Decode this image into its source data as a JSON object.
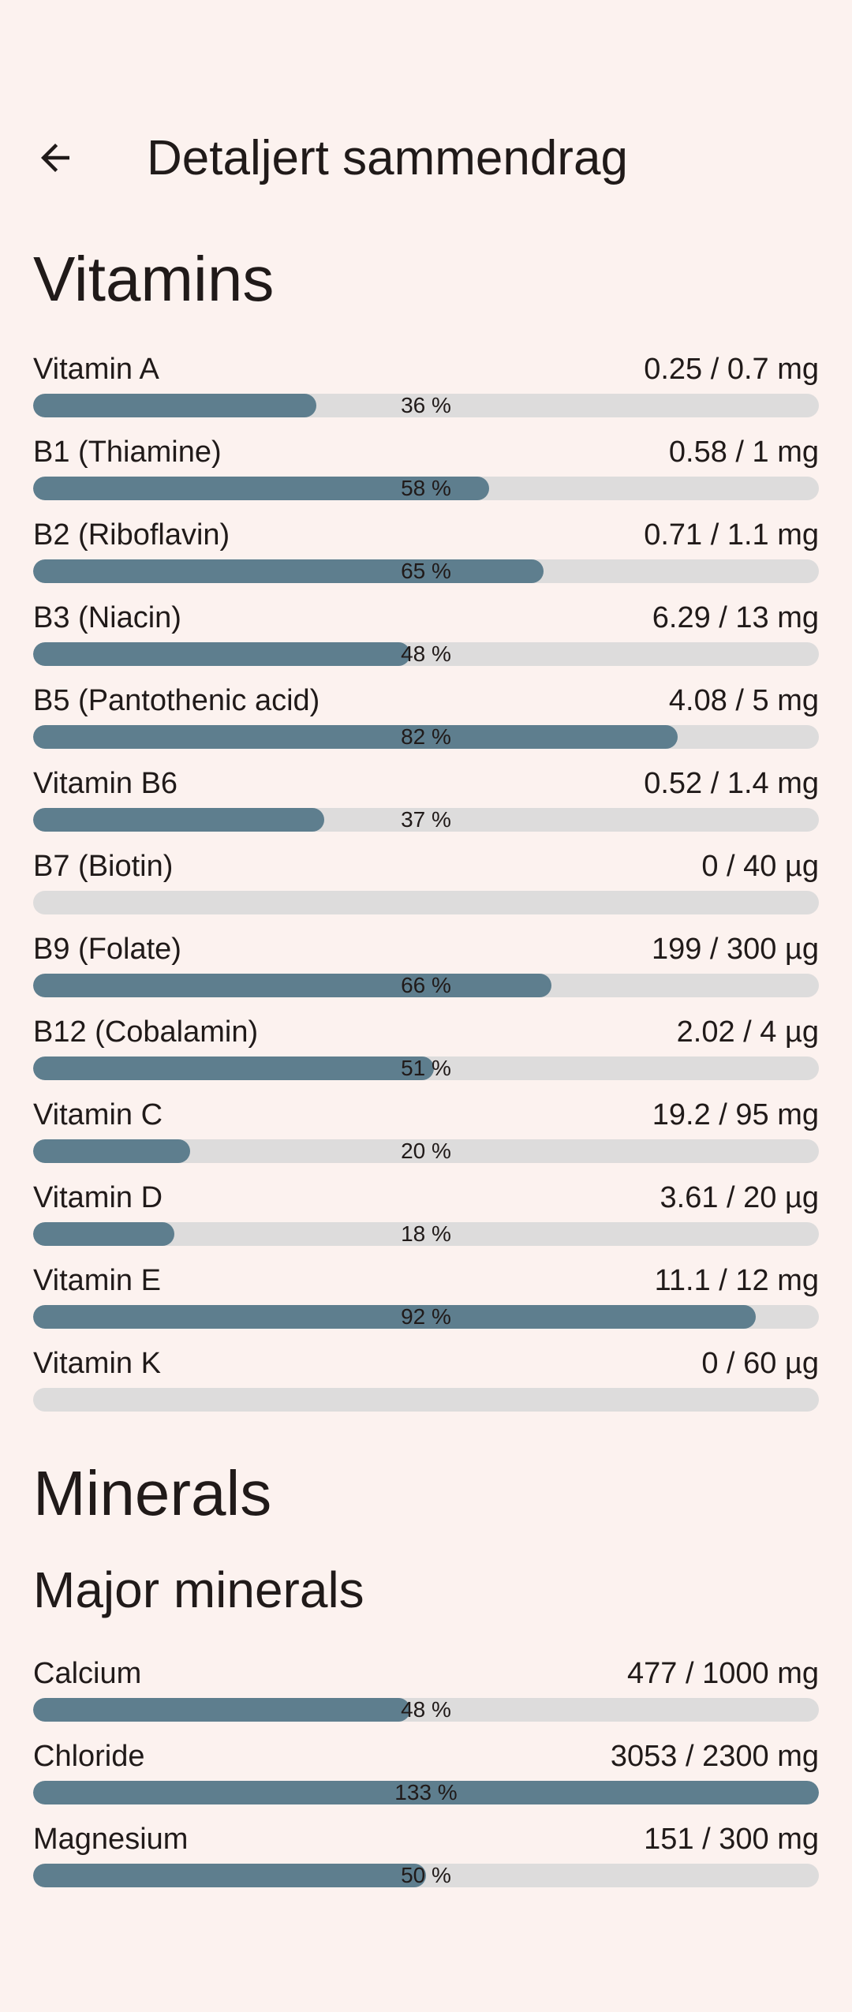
{
  "header": {
    "title": "Detaljert sammendrag",
    "back_icon": "arrow-left"
  },
  "colors": {
    "background": "#fcf2ef",
    "bar_fill": "#5e7e8e",
    "bar_track": "#dddcdc",
    "text": "#201a19"
  },
  "sections": [
    {
      "id": "vitamins",
      "heading": "Vitamins",
      "level": 1,
      "items": [
        {
          "label": "Vitamin A",
          "value": "0.25 / 0.7 mg",
          "percent_label": "36 %",
          "fill_percent": 36
        },
        {
          "label": "B1 (Thiamine)",
          "value": "0.58 / 1 mg",
          "percent_label": "58 %",
          "fill_percent": 58
        },
        {
          "label": "B2 (Riboflavin)",
          "value": "0.71 / 1.1 mg",
          "percent_label": "65 %",
          "fill_percent": 65
        },
        {
          "label": "B3 (Niacin)",
          "value": "6.29 / 13 mg",
          "percent_label": "48 %",
          "fill_percent": 48
        },
        {
          "label": "B5 (Pantothenic acid)",
          "value": "4.08 / 5 mg",
          "percent_label": "82 %",
          "fill_percent": 82
        },
        {
          "label": "Vitamin B6",
          "value": "0.52 / 1.4 mg",
          "percent_label": "37 %",
          "fill_percent": 37
        },
        {
          "label": "B7 (Biotin)",
          "value": "0 / 40 µg",
          "percent_label": "",
          "fill_percent": 0
        },
        {
          "label": "B9 (Folate)",
          "value": "199 / 300 µg",
          "percent_label": "66 %",
          "fill_percent": 66
        },
        {
          "label": "B12 (Cobalamin)",
          "value": "2.02 / 4 µg",
          "percent_label": "51 %",
          "fill_percent": 51
        },
        {
          "label": "Vitamin C",
          "value": "19.2 / 95 mg",
          "percent_label": "20 %",
          "fill_percent": 20
        },
        {
          "label": "Vitamin D",
          "value": "3.61 / 20 µg",
          "percent_label": "18 %",
          "fill_percent": 18
        },
        {
          "label": "Vitamin E",
          "value": "11.1 / 12 mg",
          "percent_label": "92 %",
          "fill_percent": 92
        },
        {
          "label": "Vitamin K",
          "value": "0 / 60 µg",
          "percent_label": "",
          "fill_percent": 0
        }
      ]
    },
    {
      "id": "minerals",
      "heading": "Minerals",
      "level": 1,
      "items": []
    },
    {
      "id": "major-minerals",
      "heading": "Major minerals",
      "level": 2,
      "items": [
        {
          "label": "Calcium",
          "value": "477 / 1000 mg",
          "percent_label": "48 %",
          "fill_percent": 48
        },
        {
          "label": "Chloride",
          "value": "3053 / 2300 mg",
          "percent_label": "133 %",
          "fill_percent": 133
        },
        {
          "label": "Magnesium",
          "value": "151 / 300 mg",
          "percent_label": "50 %",
          "fill_percent": 50
        }
      ]
    }
  ]
}
